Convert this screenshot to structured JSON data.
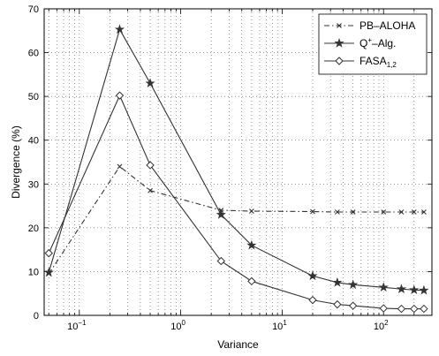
{
  "chart_data": {
    "type": "line",
    "xlabel": "Variance",
    "ylabel": "Divergence (%)",
    "xscale": "log",
    "xlim": [
      0.045,
      300
    ],
    "ylim": [
      0,
      70
    ],
    "grid": true,
    "legend_position": "top-right",
    "x_ticks": [
      {
        "value": 0.1,
        "base": "10",
        "exp": "−1"
      },
      {
        "value": 1,
        "base": "10",
        "exp": "0"
      },
      {
        "value": 10,
        "base": "10",
        "exp": "1"
      },
      {
        "value": 100,
        "base": "10",
        "exp": "2"
      }
    ],
    "y_ticks": [
      0,
      10,
      20,
      30,
      40,
      50,
      60,
      70
    ],
    "series": [
      {
        "name": "PB–ALOHA",
        "style": "dashdot",
        "marker": "x",
        "color": "#333333",
        "x": [
          0.05,
          0.25,
          0.5,
          2.5,
          5,
          20,
          35,
          50,
          100,
          150,
          200,
          250
        ],
        "y": [
          9.5,
          34,
          28.5,
          24,
          23.8,
          23.7,
          23.6,
          23.6,
          23.6,
          23.6,
          23.6,
          23.6
        ]
      },
      {
        "name_main": "Q",
        "name_sup": "+",
        "name_rest": "–Alg.",
        "style": "solid",
        "marker": "star",
        "color": "#333333",
        "x": [
          0.05,
          0.25,
          0.5,
          2.5,
          5,
          20,
          35,
          50,
          100,
          150,
          200,
          250
        ],
        "y": [
          9.8,
          65.3,
          53,
          23,
          16,
          9,
          7.5,
          7,
          6.4,
          6,
          5.8,
          5.7
        ]
      },
      {
        "name_main": "FASA",
        "name_sub": "1,2",
        "style": "solid",
        "marker": "diamond",
        "color": "#333333",
        "x": [
          0.05,
          0.25,
          0.5,
          2.5,
          5,
          20,
          35,
          50,
          100,
          150,
          200,
          250
        ],
        "y": [
          14.2,
          50.2,
          34.3,
          12.4,
          7.8,
          3.5,
          2.5,
          2.2,
          1.6,
          1.5,
          1.5,
          1.5
        ]
      }
    ]
  }
}
